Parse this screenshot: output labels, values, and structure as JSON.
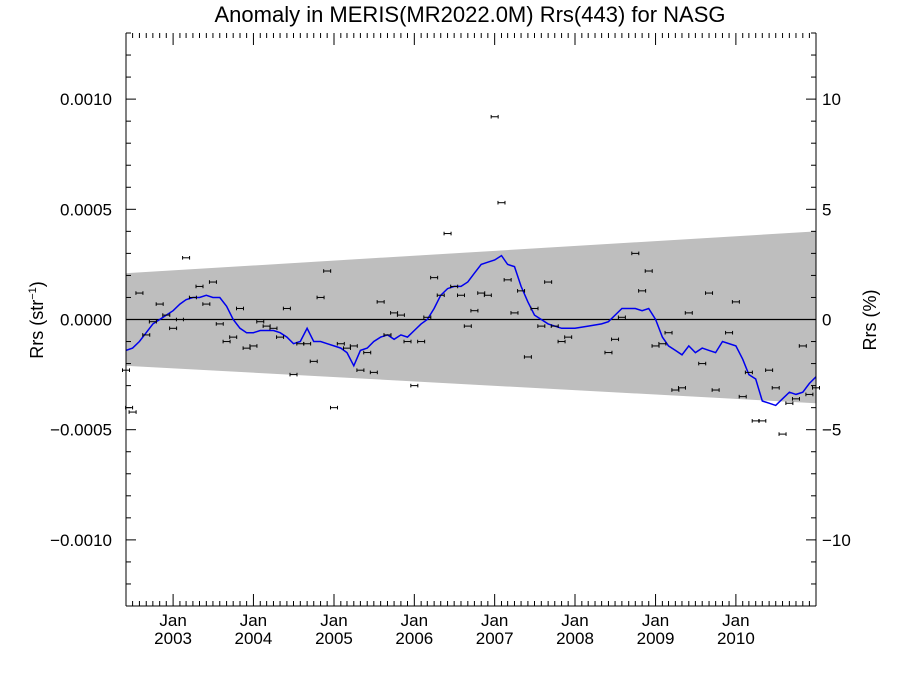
{
  "chart_data": {
    "type": "scatter",
    "title": "Anomaly in MERIS(MR2022.0M) Rrs(443) for NASG",
    "ylabel_left": "Rrs (str⁻¹)",
    "ylabel_left_main": "Rrs (str",
    "ylabel_left_sup": "−1",
    "ylabel_left_close": ")",
    "ylabel_right": "Rrs (%)",
    "xlim": [
      "2002-06-01",
      "2010-12-31"
    ],
    "ylim": [
      -0.0013,
      0.0013
    ],
    "ylim_right": [
      -13,
      13
    ],
    "y_ticks": [
      {
        "value": 0.001,
        "label": "0.0010"
      },
      {
        "value": 0.0005,
        "label": "0.0005"
      },
      {
        "value": 0.0,
        "label": "0.0000"
      },
      {
        "value": -0.0005,
        "label": "−0.0005"
      },
      {
        "value": -0.001,
        "label": "−0.0010"
      }
    ],
    "y_right_ticks": [
      {
        "value": 10,
        "label": "10"
      },
      {
        "value": 5,
        "label": "5"
      },
      {
        "value": 0,
        "label": "0"
      },
      {
        "value": -5,
        "label": "−5"
      },
      {
        "value": -10,
        "label": "−10"
      }
    ],
    "x_ticks": [
      {
        "date": "2003-01-01",
        "month": "Jan",
        "year": "2003"
      },
      {
        "date": "2004-01-01",
        "month": "Jan",
        "year": "2004"
      },
      {
        "date": "2005-01-01",
        "month": "Jan",
        "year": "2005"
      },
      {
        "date": "2006-01-01",
        "month": "Jan",
        "year": "2006"
      },
      {
        "date": "2007-01-01",
        "month": "Jan",
        "year": "2007"
      },
      {
        "date": "2008-01-01",
        "month": "Jan",
        "year": "2008"
      },
      {
        "date": "2009-01-01",
        "month": "Jan",
        "year": "2009"
      },
      {
        "date": "2010-01-01",
        "month": "Jan",
        "year": "2010"
      }
    ],
    "band": {
      "upper": [
        [
          "2002-06-01",
          0.00021
        ],
        [
          "2010-12-31",
          0.0004
        ]
      ],
      "lower": [
        [
          "2002-06-01",
          -0.00021
        ],
        [
          "2010-12-31",
          -0.00038
        ]
      ],
      "color": "#bebebe"
    },
    "zero_line": 0.0,
    "points": [
      [
        "2002-06-01",
        -0.00023
      ],
      [
        "2002-06-15",
        -0.0004
      ],
      [
        "2002-07-01",
        -0.00042
      ],
      [
        "2002-08-01",
        0.00012
      ],
      [
        "2002-09-01",
        -7e-05
      ],
      [
        "2002-10-01",
        -1e-05
      ],
      [
        "2002-11-01",
        7e-05
      ],
      [
        "2002-12-01",
        2e-05
      ],
      [
        "2003-01-01",
        -4e-05
      ],
      [
        "2003-02-01",
        0.0
      ],
      [
        "2003-03-01",
        0.00028
      ],
      [
        "2003-04-01",
        0.0001
      ],
      [
        "2003-05-01",
        0.00015
      ],
      [
        "2003-06-01",
        7e-05
      ],
      [
        "2003-07-01",
        0.00017
      ],
      [
        "2003-08-01",
        -2e-05
      ],
      [
        "2003-09-01",
        -0.0001
      ],
      [
        "2003-10-01",
        -8e-05
      ],
      [
        "2003-11-01",
        5e-05
      ],
      [
        "2003-12-01",
        -0.00013
      ],
      [
        "2004-01-01",
        -0.00012
      ],
      [
        "2004-02-01",
        -1e-05
      ],
      [
        "2004-03-01",
        -3e-05
      ],
      [
        "2004-04-01",
        -4e-05
      ],
      [
        "2004-05-01",
        -8e-05
      ],
      [
        "2004-06-01",
        5e-05
      ],
      [
        "2004-07-01",
        -0.00025
      ],
      [
        "2004-08-01",
        -0.00011
      ],
      [
        "2004-09-01",
        -0.00011
      ],
      [
        "2004-10-01",
        -0.00019
      ],
      [
        "2004-11-01",
        0.0001
      ],
      [
        "2004-12-01",
        0.00022
      ],
      [
        "2005-01-01",
        -0.0004
      ],
      [
        "2005-02-01",
        -0.00011
      ],
      [
        "2005-03-01",
        -0.00013
      ],
      [
        "2005-04-01",
        -0.00012
      ],
      [
        "2005-05-01",
        -0.00023
      ],
      [
        "2005-06-01",
        -0.00015
      ],
      [
        "2005-07-01",
        -0.00024
      ],
      [
        "2005-08-01",
        8e-05
      ],
      [
        "2005-09-01",
        -7e-05
      ],
      [
        "2005-10-01",
        3e-05
      ],
      [
        "2005-11-01",
        2e-05
      ],
      [
        "2005-12-01",
        -0.0001
      ],
      [
        "2006-01-01",
        -0.0003
      ],
      [
        "2006-02-01",
        -0.0001
      ],
      [
        "2006-03-01",
        1e-05
      ],
      [
        "2006-04-01",
        0.00019
      ],
      [
        "2006-05-01",
        0.00011
      ],
      [
        "2006-06-01",
        0.00039
      ],
      [
        "2006-07-01",
        0.00015
      ],
      [
        "2006-08-01",
        0.00011
      ],
      [
        "2006-09-01",
        -3e-05
      ],
      [
        "2006-10-01",
        4e-05
      ],
      [
        "2006-11-01",
        0.00012
      ],
      [
        "2006-12-01",
        0.00011
      ],
      [
        "2007-01-01",
        0.00092
      ],
      [
        "2007-02-01",
        0.00053
      ],
      [
        "2007-03-01",
        0.00018
      ],
      [
        "2007-04-01",
        3e-05
      ],
      [
        "2007-05-01",
        0.00013
      ],
      [
        "2007-06-01",
        -0.00017
      ],
      [
        "2007-07-01",
        5e-05
      ],
      [
        "2007-08-01",
        -3e-05
      ],
      [
        "2007-09-01",
        0.00017
      ],
      [
        "2007-10-01",
        -3e-05
      ],
      [
        "2007-11-01",
        -0.0001
      ],
      [
        "2007-12-01",
        -8e-05
      ],
      [
        "2008-06-01",
        -0.00015
      ],
      [
        "2008-07-01",
        -9e-05
      ],
      [
        "2008-08-01",
        1e-05
      ],
      [
        "2008-10-01",
        0.0003
      ],
      [
        "2008-11-01",
        0.00013
      ],
      [
        "2008-12-01",
        0.00022
      ],
      [
        "2009-01-01",
        -0.00012
      ],
      [
        "2009-02-01",
        -0.00011
      ],
      [
        "2009-03-01",
        -6e-05
      ],
      [
        "2009-04-01",
        -0.00032
      ],
      [
        "2009-05-01",
        -0.00031
      ],
      [
        "2009-06-01",
        3e-05
      ],
      [
        "2009-08-01",
        -0.0002
      ],
      [
        "2009-09-01",
        0.00012
      ],
      [
        "2009-10-01",
        -0.00032
      ],
      [
        "2009-12-01",
        -6e-05
      ],
      [
        "2010-01-01",
        8e-05
      ],
      [
        "2010-02-01",
        -0.00035
      ],
      [
        "2010-03-01",
        -0.00024
      ],
      [
        "2010-04-01",
        -0.00046
      ],
      [
        "2010-05-01",
        -0.00046
      ],
      [
        "2010-06-01",
        -0.00023
      ],
      [
        "2010-07-01",
        -0.00031
      ],
      [
        "2010-08-01",
        -0.00052
      ],
      [
        "2010-09-01",
        -0.00038
      ],
      [
        "2010-10-01",
        -0.00036
      ],
      [
        "2010-11-01",
        -0.00012
      ],
      [
        "2010-12-01",
        -0.00034
      ],
      [
        "2010-12-31",
        -0.00031
      ]
    ],
    "smooth_line": {
      "color": "#0000ee",
      "points": [
        [
          "2002-06-01",
          -0.00014
        ],
        [
          "2002-07-01",
          -0.00013
        ],
        [
          "2002-08-01",
          -0.0001
        ],
        [
          "2002-09-01",
          -6e-05
        ],
        [
          "2002-10-01",
          -2e-05
        ],
        [
          "2002-11-01",
          0.0
        ],
        [
          "2002-12-01",
          2e-05
        ],
        [
          "2003-01-01",
          4e-05
        ],
        [
          "2003-02-01",
          7e-05
        ],
        [
          "2003-03-01",
          9e-05
        ],
        [
          "2003-04-01",
          0.0001
        ],
        [
          "2003-05-01",
          0.0001
        ],
        [
          "2003-06-01",
          0.00011
        ],
        [
          "2003-07-01",
          0.0001
        ],
        [
          "2003-08-01",
          0.0001
        ],
        [
          "2003-09-01",
          6e-05
        ],
        [
          "2003-10-01",
          0.0
        ],
        [
          "2003-11-01",
          -4e-05
        ],
        [
          "2003-12-01",
          -6e-05
        ],
        [
          "2004-01-01",
          -6e-05
        ],
        [
          "2004-02-01",
          -5e-05
        ],
        [
          "2004-04-01",
          -5e-05
        ],
        [
          "2004-05-01",
          -6e-05
        ],
        [
          "2004-06-01",
          -8e-05
        ],
        [
          "2004-07-01",
          -0.00011
        ],
        [
          "2004-08-01",
          -0.0001
        ],
        [
          "2004-09-01",
          -4e-05
        ],
        [
          "2004-10-01",
          -0.0001
        ],
        [
          "2004-11-01",
          -0.0001
        ],
        [
          "2004-12-01",
          -0.00011
        ],
        [
          "2005-01-01",
          -0.00012
        ],
        [
          "2005-02-01",
          -0.00013
        ],
        [
          "2005-03-01",
          -0.00015
        ],
        [
          "2005-04-01",
          -0.00021
        ],
        [
          "2005-05-01",
          -0.00014
        ],
        [
          "2005-06-01",
          -0.00013
        ],
        [
          "2005-07-01",
          -0.0001
        ],
        [
          "2005-08-01",
          -8e-05
        ],
        [
          "2005-09-01",
          -7e-05
        ],
        [
          "2005-10-01",
          -9e-05
        ],
        [
          "2005-11-01",
          -7e-05
        ],
        [
          "2005-12-01",
          -8e-05
        ],
        [
          "2006-01-01",
          -5e-05
        ],
        [
          "2006-02-01",
          -2e-05
        ],
        [
          "2006-03-01",
          0.0
        ],
        [
          "2006-04-01",
          5e-05
        ],
        [
          "2006-05-01",
          0.00011
        ],
        [
          "2006-06-01",
          0.00014
        ],
        [
          "2006-07-01",
          0.00015
        ],
        [
          "2006-08-01",
          0.00015
        ],
        [
          "2006-09-01",
          0.00017
        ],
        [
          "2006-10-01",
          0.00021
        ],
        [
          "2006-11-01",
          0.00025
        ],
        [
          "2006-12-01",
          0.00026
        ],
        [
          "2007-01-01",
          0.00027
        ],
        [
          "2007-02-01",
          0.00029
        ],
        [
          "2007-03-01",
          0.00025
        ],
        [
          "2007-04-01",
          0.00024
        ],
        [
          "2007-05-01",
          0.00015
        ],
        [
          "2007-06-01",
          8e-05
        ],
        [
          "2007-07-01",
          2e-05
        ],
        [
          "2007-08-01",
          0.0
        ],
        [
          "2007-09-01",
          -2e-05
        ],
        [
          "2007-10-01",
          -3e-05
        ],
        [
          "2007-11-01",
          -4e-05
        ],
        [
          "2008-01-01",
          -4e-05
        ],
        [
          "2008-03-01",
          -3e-05
        ],
        [
          "2008-05-01",
          -2e-05
        ],
        [
          "2008-06-01",
          -1e-05
        ],
        [
          "2008-07-01",
          2e-05
        ],
        [
          "2008-08-01",
          5e-05
        ],
        [
          "2008-09-01",
          5e-05
        ],
        [
          "2008-10-01",
          5e-05
        ],
        [
          "2008-11-01",
          4e-05
        ],
        [
          "2008-12-01",
          5e-05
        ],
        [
          "2009-01-01",
          0.0
        ],
        [
          "2009-02-01",
          -8e-05
        ],
        [
          "2009-03-01",
          -0.00012
        ],
        [
          "2009-04-01",
          -0.00014
        ],
        [
          "2009-05-01",
          -0.00016
        ],
        [
          "2009-06-01",
          -0.00012
        ],
        [
          "2009-07-01",
          -0.00015
        ],
        [
          "2009-08-01",
          -0.00013
        ],
        [
          "2009-09-01",
          -0.00014
        ],
        [
          "2009-10-01",
          -0.00015
        ],
        [
          "2009-11-01",
          -0.0001
        ],
        [
          "2010-01-01",
          -0.00012
        ],
        [
          "2010-02-01",
          -0.00018
        ],
        [
          "2010-03-01",
          -0.00025
        ],
        [
          "2010-04-01",
          -0.00027
        ],
        [
          "2010-05-01",
          -0.00037
        ],
        [
          "2010-06-01",
          -0.00038
        ],
        [
          "2010-07-01",
          -0.00039
        ],
        [
          "2010-08-01",
          -0.00036
        ],
        [
          "2010-09-01",
          -0.00033
        ],
        [
          "2010-10-01",
          -0.00034
        ],
        [
          "2010-11-01",
          -0.00033
        ],
        [
          "2010-12-01",
          -0.00029
        ],
        [
          "2010-12-31",
          -0.00026
        ]
      ]
    }
  }
}
